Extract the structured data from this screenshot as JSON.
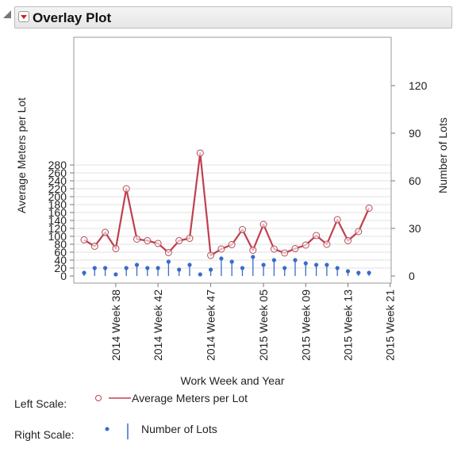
{
  "panel": {
    "title": "Overlay Plot"
  },
  "legend": {
    "left_scale_label": "Left Scale:",
    "right_scale_label": "Right Scale:",
    "left_series_name": "Average Meters per Lot",
    "right_series_name": "Number of Lots"
  },
  "colors": {
    "line": "#c0404f",
    "marker_line": "#b24b55",
    "needle": "#3a6bc9",
    "grid": "#e1e1e1"
  },
  "chart_data": {
    "type": "line",
    "xlabel": "Work Week and Year",
    "ylabel_left": "Average Meters per Lot",
    "ylabel_right": "Number of Lots",
    "ylim_left": [
      0,
      300
    ],
    "ylim_right": [
      0,
      150
    ],
    "left_ticks": [
      0,
      20,
      40,
      60,
      80,
      100,
      120,
      140,
      160,
      180,
      200,
      220,
      240,
      260,
      280
    ],
    "right_ticks": [
      0,
      30,
      60,
      90,
      120
    ],
    "grid": true,
    "x_tick_labels": [
      "2014 Week 38",
      "2014 Week 42",
      "2014 Week 47",
      "2015 Week 05",
      "2015 Week 09",
      "2015 Week 13",
      "2015 Week 21"
    ],
    "x_tick_index": [
      3,
      7,
      12,
      17,
      21,
      25,
      29
    ],
    "series": [
      {
        "name": "Average Meters per Lot",
        "axis": "left",
        "style": "line+circle",
        "values": [
          91,
          75,
          110,
          69,
          220,
          93,
          89,
          82,
          59,
          89,
          95,
          310,
          52,
          68,
          79,
          117,
          65,
          130,
          68,
          58,
          69,
          78,
          102,
          80,
          142,
          89,
          112,
          171
        ]
      },
      {
        "name": "Number of Lots",
        "axis": "right",
        "style": "needle",
        "values": [
          2,
          5,
          5,
          1,
          5,
          7,
          5,
          5,
          9,
          4,
          7,
          1,
          4,
          11,
          9,
          5,
          12,
          7,
          10,
          5,
          10,
          8,
          7,
          7,
          5,
          3,
          2,
          2
        ]
      }
    ]
  }
}
